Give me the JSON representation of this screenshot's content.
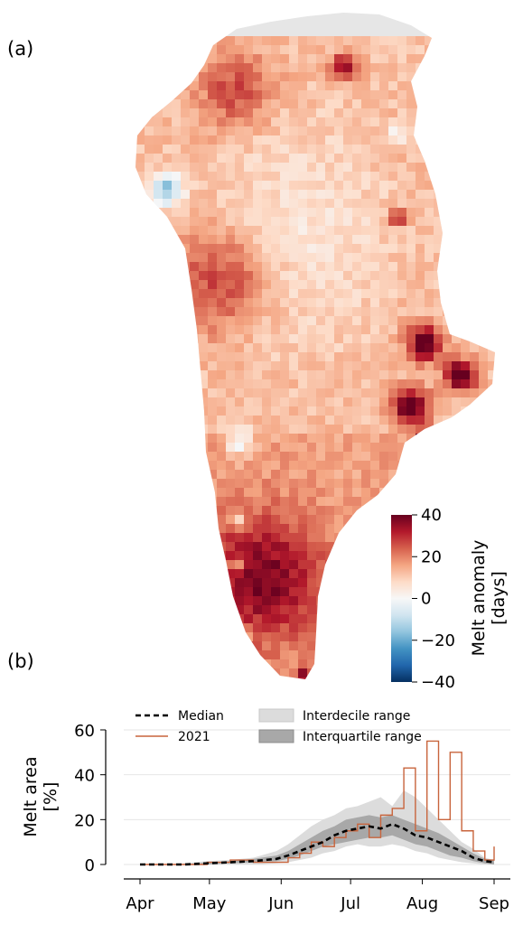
{
  "panel_a": {
    "label": "(a)",
    "colorbar": {
      "label_line1": "Melt anomaly",
      "label_line2": "[days]",
      "ticks": [
        "40",
        "20",
        "0",
        "−20",
        "−40"
      ],
      "tick_values": [
        40,
        20,
        0,
        -20,
        -40
      ],
      "range": [
        -40,
        40
      ],
      "colormap": "RdBu_r",
      "color_stops": [
        "#053061",
        "#2166ac",
        "#4393c3",
        "#92c5de",
        "#d1e5f0",
        "#f7f7f7",
        "#fddbc7",
        "#f4a582",
        "#d6604d",
        "#b2182b",
        "#67001f"
      ]
    }
  },
  "panel_b": {
    "label": "(b)"
  },
  "map_colors": {
    "land": "#e6e6e6",
    "background": "#ffffff"
  },
  "chart_data": [
    {
      "type": "heatmap",
      "description_of_content": "Gridded melt anomaly over the Greenland ice sheet",
      "value_range": [
        -40,
        40
      ],
      "units": "days",
      "colorbar_label": "Melt anomaly [days]"
    },
    {
      "type": "line",
      "ylabel": "Melt area [%]",
      "ylim": [
        0,
        60
      ],
      "yticks": [
        0,
        20,
        40,
        60
      ],
      "x_tick_labels": [
        "Apr",
        "May",
        "Jun",
        "Jul",
        "Aug",
        "Sep"
      ],
      "x_ticks_doy": [
        91,
        121,
        152,
        182,
        213,
        244
      ],
      "xlim_doy": [
        91,
        244
      ],
      "grid": "horizontal",
      "legend": "top",
      "legend_entries": {
        "median": "Median",
        "year": "2021",
        "interdecile": "Interdecile range",
        "interquartile": "Interquartile range"
      },
      "colors": {
        "median": "#000000",
        "year": "#c8643c",
        "interdecile": "#dcdcdc",
        "interquartile": "#a8a8a8"
      },
      "x_doy": [
        91,
        100,
        110,
        120,
        130,
        140,
        150,
        155,
        160,
        165,
        170,
        175,
        180,
        185,
        190,
        195,
        200,
        205,
        210,
        215,
        220,
        225,
        230,
        235,
        240,
        244
      ],
      "series": [
        {
          "name": "Median",
          "values": [
            0,
            0,
            0,
            0.5,
            1,
            1.5,
            2.5,
            4,
            6,
            8,
            10,
            13,
            15,
            16,
            17,
            16,
            18,
            16,
            13,
            12,
            10,
            8,
            6,
            3,
            1.5,
            1
          ]
        },
        {
          "name": "2021",
          "values": [
            0,
            0,
            0,
            1,
            2,
            1,
            1,
            3,
            5,
            10,
            8,
            12,
            15,
            18,
            12,
            22,
            25,
            43,
            15,
            55,
            20,
            50,
            15,
            6,
            2,
            8
          ]
        }
      ],
      "bands": [
        {
          "name": "Interdecile range",
          "lower": [
            0,
            0,
            0,
            0,
            0,
            0,
            0.5,
            1,
            2,
            3,
            5,
            6,
            8,
            9,
            8,
            8,
            9,
            8,
            6,
            5,
            3,
            2,
            1,
            0.5,
            0,
            0
          ],
          "upper": [
            0,
            0,
            0.5,
            1.5,
            2,
            3,
            6,
            9,
            13,
            17,
            20,
            22,
            25,
            26,
            28,
            30,
            26,
            33,
            30,
            25,
            20,
            15,
            10,
            7,
            3,
            2
          ]
        },
        {
          "name": "Interquartile range",
          "lower": [
            0,
            0,
            0,
            0,
            0.5,
            1,
            1.5,
            2.5,
            4,
            6,
            8,
            9,
            10,
            11,
            12,
            12,
            13,
            11,
            9,
            8,
            6,
            4,
            3,
            1.5,
            0.5,
            0
          ],
          "upper": [
            0,
            0,
            0,
            0.8,
            1.5,
            2.5,
            4,
            6,
            9,
            12,
            15,
            17,
            20,
            21,
            22,
            21,
            22,
            20,
            18,
            16,
            14,
            11,
            8,
            5,
            2.5,
            2
          ]
        }
      ]
    }
  ]
}
